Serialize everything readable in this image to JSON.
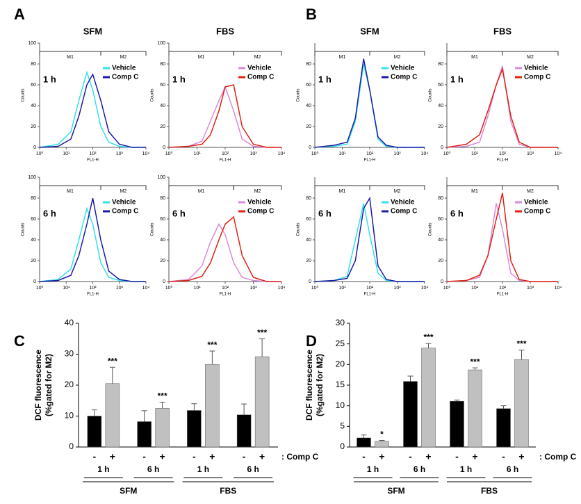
{
  "chart_data": [
    {
      "type": "line",
      "panel": "A",
      "title": "SFM",
      "annotation": "1 h",
      "xlabel": "FL1-H",
      "ylabel": "Counts",
      "xscale": "log",
      "xlim": [
        1,
        10000
      ],
      "xticks": [
        {
          "value": 1,
          "label": "10⁰"
        },
        {
          "value": 10,
          "label": "10¹"
        },
        {
          "value": 100,
          "label": "10²"
        },
        {
          "value": 1000,
          "label": "10³"
        },
        {
          "value": 10000,
          "label": "10⁴"
        }
      ],
      "ylim": [
        0,
        100
      ],
      "yticks": [
        0,
        20,
        40,
        60,
        80,
        100
      ],
      "legend": "upper right",
      "gates": [
        {
          "label": "M1",
          "range": [
            1,
            200
          ]
        },
        {
          "label": "M2",
          "range": [
            200,
            10000
          ]
        }
      ],
      "x": [
        1,
        5,
        15,
        30,
        60,
        100,
        200,
        400,
        1000,
        3000,
        10000
      ],
      "series": [
        {
          "name": "Vehicle",
          "color": "#33e0e8",
          "values": [
            0,
            3,
            15,
            45,
            72,
            55,
            20,
            5,
            1,
            0,
            0
          ]
        },
        {
          "name": "Comp C",
          "color": "#1a1aa8",
          "values": [
            0,
            1,
            8,
            30,
            60,
            70,
            45,
            15,
            3,
            0,
            0
          ]
        }
      ]
    },
    {
      "type": "line",
      "title": "FBS",
      "annotation": "1 h",
      "xlabel": "FL1-H",
      "ylabel": "Counts",
      "xscale": "log",
      "xlim": [
        1,
        10000
      ],
      "xticks": [
        {
          "value": 1,
          "label": "10⁰"
        },
        {
          "value": 10,
          "label": "10¹"
        },
        {
          "value": 100,
          "label": "10²"
        },
        {
          "value": 1000,
          "label": "10³"
        },
        {
          "value": 10000,
          "label": "10⁴"
        }
      ],
      "ylim": [
        0,
        100
      ],
      "yticks": [
        0,
        20,
        40,
        60,
        80,
        100
      ],
      "legend": "upper right",
      "gates": [
        {
          "label": "M1",
          "range": [
            1,
            200
          ]
        },
        {
          "label": "M2",
          "range": [
            200,
            10000
          ]
        }
      ],
      "x": [
        1,
        5,
        15,
        30,
        60,
        100,
        200,
        400,
        1000,
        3000,
        10000
      ],
      "series": [
        {
          "name": "Vehicle",
          "color": "#d98ad9",
          "values": [
            0,
            1,
            6,
            25,
            45,
            58,
            35,
            8,
            1,
            0,
            0
          ]
        },
        {
          "name": "Comp C",
          "color": "#e02010",
          "values": [
            0,
            1,
            3,
            12,
            35,
            58,
            60,
            20,
            3,
            0,
            0
          ]
        }
      ]
    },
    {
      "type": "line",
      "annotation": "6 h",
      "xlabel": "FL1-H",
      "ylabel": "Counts",
      "xscale": "log",
      "xlim": [
        1,
        10000
      ],
      "xticks": [
        {
          "value": 1,
          "label": "10⁰"
        },
        {
          "value": 10,
          "label": "10¹"
        },
        {
          "value": 100,
          "label": "10²"
        },
        {
          "value": 1000,
          "label": "10³"
        },
        {
          "value": 10000,
          "label": "10⁴"
        }
      ],
      "ylim": [
        0,
        100
      ],
      "yticks": [
        0,
        20,
        40,
        60,
        80,
        100
      ],
      "legend": "upper right",
      "gates": [
        {
          "label": "M1",
          "range": [
            1,
            200
          ]
        },
        {
          "label": "M2",
          "range": [
            200,
            10000
          ]
        }
      ],
      "x": [
        1,
        5,
        15,
        30,
        60,
        100,
        200,
        400,
        1000,
        3000,
        10000
      ],
      "series": [
        {
          "name": "Vehicle",
          "color": "#33e0e8",
          "values": [
            0,
            2,
            12,
            40,
            70,
            55,
            18,
            4,
            1,
            0,
            0
          ]
        },
        {
          "name": "Comp C",
          "color": "#1a1aa8",
          "values": [
            0,
            1,
            6,
            25,
            55,
            80,
            40,
            10,
            2,
            0,
            0
          ]
        }
      ]
    },
    {
      "type": "line",
      "annotation": "6 h",
      "xlabel": "FL1-H",
      "ylabel": "Counts",
      "xscale": "log",
      "xlim": [
        1,
        10000
      ],
      "xticks": [
        {
          "value": 1,
          "label": "10⁰"
        },
        {
          "value": 10,
          "label": "10¹"
        },
        {
          "value": 100,
          "label": "10²"
        },
        {
          "value": 1000,
          "label": "10³"
        },
        {
          "value": 10000,
          "label": "10⁴"
        }
      ],
      "ylim": [
        0,
        100
      ],
      "yticks": [
        0,
        20,
        40,
        60,
        80,
        100
      ],
      "legend": "upper right",
      "gates": [
        {
          "label": "M1",
          "range": [
            1,
            200
          ]
        },
        {
          "label": "M2",
          "range": [
            200,
            10000
          ]
        }
      ],
      "x": [
        1,
        5,
        15,
        30,
        60,
        100,
        200,
        400,
        1000,
        3000,
        10000
      ],
      "series": [
        {
          "name": "Vehicle",
          "color": "#d98ad9",
          "values": [
            0,
            2,
            15,
            38,
            55,
            45,
            18,
            4,
            1,
            0,
            0
          ]
        },
        {
          "name": "Comp C",
          "color": "#e02010",
          "values": [
            0,
            1,
            5,
            18,
            40,
            55,
            62,
            25,
            4,
            0,
            0
          ]
        }
      ]
    },
    {
      "type": "line",
      "panel": "B",
      "title": "SFM",
      "annotation": "1 h",
      "xlabel": "FL1-H",
      "ylabel": "Counts",
      "xscale": "log",
      "xlim": [
        1,
        10000
      ],
      "xticks": [
        {
          "value": 1,
          "label": "10⁰"
        },
        {
          "value": 10,
          "label": "10¹"
        },
        {
          "value": 100,
          "label": "10²"
        },
        {
          "value": 1000,
          "label": "10³"
        },
        {
          "value": 10000,
          "label": "10⁴"
        }
      ],
      "ylim": [
        0,
        100
      ],
      "yticks": [
        0,
        20,
        40,
        60,
        80
      ],
      "legend": "upper right",
      "gates": [
        {
          "label": "M1",
          "range": [
            1,
            100
          ]
        },
        {
          "label": "M2",
          "range": [
            100,
            10000
          ]
        }
      ],
      "x": [
        1,
        5,
        15,
        30,
        60,
        100,
        200,
        400,
        1000,
        3000,
        10000
      ],
      "series": [
        {
          "name": "Vehicle",
          "color": "#33e0e8",
          "values": [
            0,
            1,
            3,
            25,
            80,
            55,
            8,
            1,
            0,
            0,
            0
          ]
        },
        {
          "name": "Comp C",
          "color": "#1a1aa8",
          "values": [
            0,
            2,
            5,
            28,
            85,
            55,
            10,
            2,
            0,
            0,
            0
          ]
        }
      ]
    },
    {
      "type": "line",
      "title": "FBS",
      "annotation": "1 h",
      "xlabel": "FL1-H",
      "ylabel": "Counts",
      "xscale": "log",
      "xlim": [
        1,
        10000
      ],
      "xticks": [
        {
          "value": 1,
          "label": "10⁰"
        },
        {
          "value": 10,
          "label": "10¹"
        },
        {
          "value": 100,
          "label": "10²"
        },
        {
          "value": 1000,
          "label": "10³"
        },
        {
          "value": 10000,
          "label": "10⁴"
        }
      ],
      "ylim": [
        0,
        100
      ],
      "yticks": [
        0,
        20,
        40,
        60,
        80
      ],
      "legend": "upper right",
      "gates": [
        {
          "label": "M1",
          "range": [
            1,
            100
          ]
        },
        {
          "label": "M2",
          "range": [
            100,
            10000
          ]
        }
      ],
      "x": [
        1,
        5,
        15,
        30,
        60,
        100,
        200,
        400,
        1000,
        3000,
        10000
      ],
      "series": [
        {
          "name": "Vehicle",
          "color": "#d98ad9",
          "values": [
            0,
            1,
            5,
            30,
            60,
            78,
            25,
            3,
            0,
            0,
            0
          ]
        },
        {
          "name": "Comp C",
          "color": "#e02010",
          "values": [
            0,
            3,
            12,
            35,
            60,
            75,
            30,
            5,
            0,
            0,
            0
          ]
        }
      ]
    },
    {
      "type": "line",
      "annotation": "6 h",
      "xlabel": "FL1-H",
      "ylabel": "Counts",
      "xscale": "log",
      "xlim": [
        1,
        10000
      ],
      "xticks": [
        {
          "value": 1,
          "label": "10⁰"
        },
        {
          "value": 10,
          "label": "10¹"
        },
        {
          "value": 100,
          "label": "10²"
        },
        {
          "value": 1000,
          "label": "10³"
        },
        {
          "value": 10000,
          "label": "10⁴"
        }
      ],
      "ylim": [
        0,
        100
      ],
      "yticks": [
        0,
        20,
        40,
        60,
        80
      ],
      "legend": "upper right",
      "gates": [
        {
          "label": "M1",
          "range": [
            1,
            100
          ]
        },
        {
          "label": "M2",
          "range": [
            100,
            10000
          ]
        }
      ],
      "x": [
        1,
        5,
        15,
        30,
        60,
        100,
        200,
        400,
        1000,
        3000,
        10000
      ],
      "series": [
        {
          "name": "Vehicle",
          "color": "#33e0e8",
          "values": [
            0,
            1,
            5,
            40,
            75,
            45,
            8,
            1,
            0,
            0,
            0
          ]
        },
        {
          "name": "Comp C",
          "color": "#1a1aa8",
          "values": [
            0,
            1,
            3,
            20,
            70,
            80,
            15,
            2,
            0,
            0,
            0
          ]
        }
      ]
    },
    {
      "type": "line",
      "annotation": "6 h",
      "xlabel": "FL1-H",
      "ylabel": "Counts",
      "xscale": "log",
      "xlim": [
        1,
        10000
      ],
      "xticks": [
        {
          "value": 1,
          "label": "10⁰"
        },
        {
          "value": 10,
          "label": "10¹"
        },
        {
          "value": 100,
          "label": "10²"
        },
        {
          "value": 1000,
          "label": "10³"
        },
        {
          "value": 10000,
          "label": "10⁴"
        }
      ],
      "ylim": [
        0,
        100
      ],
      "yticks": [
        0,
        20,
        40,
        60,
        80
      ],
      "legend": "upper right",
      "gates": [
        {
          "label": "M1",
          "range": [
            1,
            100
          ]
        },
        {
          "label": "M2",
          "range": [
            100,
            10000
          ]
        }
      ],
      "x": [
        1,
        5,
        15,
        30,
        60,
        100,
        200,
        400,
        1000,
        3000,
        10000
      ],
      "series": [
        {
          "name": "Vehicle",
          "color": "#d98ad9",
          "values": [
            0,
            1,
            4,
            25,
            75,
            50,
            8,
            1,
            0,
            0,
            0
          ]
        },
        {
          "name": "Comp C",
          "color": "#e02010",
          "values": [
            0,
            1,
            6,
            25,
            60,
            85,
            20,
            2,
            0,
            0,
            0
          ]
        }
      ]
    },
    {
      "type": "bar",
      "panel": "C",
      "ylabel": [
        "DCF fluorescence",
        "(%gated for M2)"
      ],
      "ylim": [
        0,
        40
      ],
      "yticks": [
        0,
        10,
        20,
        30,
        40
      ],
      "categories": [
        "1 h",
        "6 h",
        "1 h",
        "6 h"
      ],
      "groups": [
        "SFM",
        "FBS"
      ],
      "treatment_label": ": Comp C",
      "series": [
        {
          "name": "-",
          "color": "#000000",
          "values": [
            10,
            8.2,
            11.8,
            10.4
          ],
          "errors": [
            2,
            3.5,
            2.2,
            3.5
          ]
        },
        {
          "name": "+",
          "color": "#c0c0c0",
          "values": [
            20.5,
            12.5,
            26.7,
            29.2
          ],
          "errors": [
            5.3,
            2,
            4.3,
            5.8
          ],
          "annotations": [
            "***",
            "***",
            "***",
            "***"
          ]
        }
      ]
    },
    {
      "type": "bar",
      "panel": "D",
      "ylabel": [
        "DCF fluorescence",
        "(%gated for M2)"
      ],
      "ylim": [
        0,
        30
      ],
      "yticks": [
        0,
        5,
        10,
        15,
        20,
        25,
        30
      ],
      "categories": [
        "1 h",
        "6 h",
        "1 h",
        "6 h"
      ],
      "groups": [
        "SFM",
        "FBS"
      ],
      "treatment_label": ": Comp C",
      "series": [
        {
          "name": "-",
          "color": "#000000",
          "values": [
            2.2,
            15.9,
            11.1,
            9.3
          ],
          "errors": [
            0.7,
            1.3,
            0.3,
            0.7
          ]
        },
        {
          "name": "+",
          "color": "#c0c0c0",
          "values": [
            1.4,
            24,
            18.7,
            21.2
          ],
          "errors": [
            0.2,
            1.1,
            0.5,
            2.3
          ],
          "annotations": [
            "*",
            "***",
            "***",
            "***"
          ]
        }
      ]
    }
  ]
}
